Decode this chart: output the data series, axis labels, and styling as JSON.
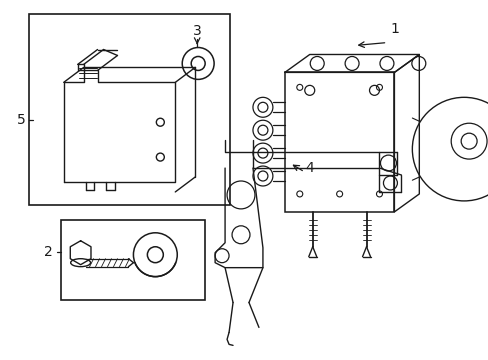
{
  "background_color": "#ffffff",
  "line_color": "#1a1a1a",
  "line_width": 1.0,
  "label_fontsize": 10,
  "fig_w": 4.89,
  "fig_h": 3.6,
  "dpi": 100
}
